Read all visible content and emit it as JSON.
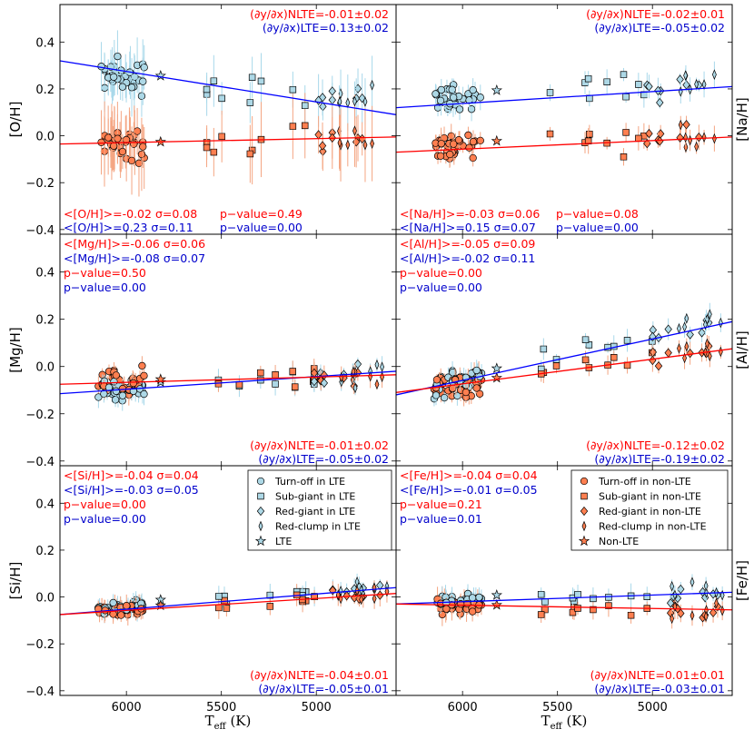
{
  "colors": {
    "lte": "#add8e6",
    "nlte": "#ff7f50",
    "lte_text": "#0000cc",
    "nlte_text": "#ff0000",
    "lte_line": "#0000ff",
    "nlte_line": "#ff0000",
    "lte_err": "#a8d8ea",
    "nlte_err": "#f4a582"
  },
  "figure": {
    "xlabel": "T_eff (K)",
    "xlabel_main": "T",
    "xlabel_sub": "eff",
    "xlabel_unit": " (K)"
  },
  "legend_lte": {
    "entries": [
      {
        "label": "Turn-off in LTE",
        "marker": "circle"
      },
      {
        "label": "Sub-giant in LTE",
        "marker": "square"
      },
      {
        "label": "Red-giant in LTE",
        "marker": "diamond"
      },
      {
        "label": "Red-clump in LTE",
        "marker": "thin_diamond"
      },
      {
        "label": "LTE",
        "marker": "star"
      }
    ]
  },
  "legend_nlte": {
    "entries": [
      {
        "label": "Turn-off in non-LTE",
        "marker": "circle"
      },
      {
        "label": "Sub-giant in non-LTE",
        "marker": "square"
      },
      {
        "label": "Red-giant in non-LTE",
        "marker": "diamond"
      },
      {
        "label": "Red-clump in non-LTE",
        "marker": "thin_diamond"
      },
      {
        "label": "Non-LTE",
        "marker": "star"
      }
    ]
  },
  "chart_data": [
    {
      "type": "scatter",
      "element": "O",
      "ylabel": "[O/H]",
      "ylabel_side": "left",
      "xlim": [
        6350,
        4580
      ],
      "ylim": [
        -0.42,
        0.56
      ],
      "xticks": [
        6000,
        5500,
        5000
      ],
      "xtick_labels": [
        "6000",
        "5500",
        "5000"
      ],
      "show_xticks": false,
      "yticks": [
        -0.4,
        -0.2,
        0.0,
        0.2,
        0.4
      ],
      "ytick_labels": [
        "−0.4",
        "−0.2",
        "0.0",
        "0.2",
        "0.4"
      ],
      "lte_fit": [
        [
          6350,
          0.32
        ],
        [
          4580,
          0.09
        ]
      ],
      "nlte_fit": [
        [
          6350,
          -0.035
        ],
        [
          4580,
          -0.005
        ]
      ],
      "slope_nlte": "(∂y/∂x)NLTE=-0.01±0.02",
      "slope_lte": "(∂y/∂x)LTE=0.13±0.02",
      "slope_pos": "top",
      "mean_nlte": "<[O/H]>=-0.02 σ=0.08",
      "mean_lte": "<[O/H]>=0.23 σ=0.11",
      "pval_nlte": "p−value=0.49",
      "pval_lte": "p−value=0.00",
      "stats_pos": "bottom"
    },
    {
      "type": "scatter",
      "element": "Na",
      "ylabel": "[Na/H]",
      "ylabel_side": "right",
      "xlim": [
        6350,
        4580
      ],
      "ylim": [
        -0.42,
        0.56
      ],
      "xticks": [
        6000,
        5500,
        5000
      ],
      "xtick_labels": [
        "6000",
        "5500",
        "5000"
      ],
      "show_xticks": false,
      "yticks": [],
      "ytick_labels": [],
      "lte_fit": [
        [
          6350,
          0.12
        ],
        [
          4580,
          0.21
        ]
      ],
      "nlte_fit": [
        [
          6350,
          -0.07
        ],
        [
          4580,
          -0.005
        ]
      ],
      "slope_nlte": "(∂y/∂x)NLTE=-0.02±0.01",
      "slope_lte": "(∂y/∂x)LTE=-0.05±0.02",
      "slope_pos": "top",
      "mean_nlte": "<[Na/H]>=-0.03 σ=0.06",
      "mean_lte": "<[Na/H]>=0.15 σ=0.07",
      "pval_nlte": "p−value=0.08",
      "pval_lte": "p−value=0.00",
      "stats_pos": "bottom"
    },
    {
      "type": "scatter",
      "element": "Mg",
      "ylabel": "[Mg/H]",
      "ylabel_side": "left",
      "xlim": [
        6350,
        4580
      ],
      "ylim": [
        -0.42,
        0.56
      ],
      "xticks": [
        6000,
        5500,
        5000
      ],
      "xtick_labels": [
        "6000",
        "5500",
        "5000"
      ],
      "show_xticks": false,
      "yticks": [
        -0.4,
        -0.2,
        0.0,
        0.2,
        0.4
      ],
      "ytick_labels": [
        "−0.4",
        "−0.2",
        "0.0",
        "0.2",
        "0.4"
      ],
      "lte_fit": [
        [
          6350,
          -0.115
        ],
        [
          4580,
          -0.02
        ]
      ],
      "nlte_fit": [
        [
          6350,
          -0.075
        ],
        [
          4580,
          -0.035
        ]
      ],
      "slope_nlte": "(∂y/∂x)NLTE=-0.01±0.02",
      "slope_lte": "(∂y/∂x)LTE=-0.05±0.02",
      "slope_pos": "bottom",
      "mean_nlte": "<[Mg/H]>=-0.06 σ=0.06",
      "mean_lte": "<[Mg/H]>=-0.08 σ=0.07",
      "pval_nlte": "p−value=0.50",
      "pval_lte": "p−value=0.00",
      "stats_pos": "top"
    },
    {
      "type": "scatter",
      "element": "Al",
      "ylabel": "[Al/H]",
      "ylabel_side": "right",
      "xlim": [
        6350,
        4580
      ],
      "ylim": [
        -0.42,
        0.56
      ],
      "xticks": [
        6000,
        5500,
        5000
      ],
      "xtick_labels": [
        "6000",
        "5500",
        "5000"
      ],
      "show_xticks": false,
      "yticks": [],
      "ytick_labels": [],
      "lte_fit": [
        [
          6350,
          -0.12
        ],
        [
          4580,
          0.19
        ]
      ],
      "nlte_fit": [
        [
          6350,
          -0.11
        ],
        [
          4580,
          0.075
        ]
      ],
      "slope_nlte": "(∂y/∂x)NLTE=-0.12±0.02",
      "slope_lte": "(∂y/∂x)LTE=-0.19±0.02",
      "slope_pos": "bottom",
      "mean_nlte": "<[Al/H]>=-0.05 σ=0.09",
      "mean_lte": "<[Al/H]>=-0.02 σ=0.11",
      "pval_nlte": "p−value=0.00",
      "pval_lte": "p−value=0.00",
      "stats_pos": "top"
    },
    {
      "type": "scatter",
      "element": "Si",
      "ylabel": "[Si/H]",
      "ylabel_side": "left",
      "xlim": [
        6350,
        4580
      ],
      "ylim": [
        -0.42,
        0.56
      ],
      "xticks": [
        6000,
        5500,
        5000
      ],
      "xtick_labels": [
        "6000",
        "5500",
        "5000"
      ],
      "show_xticks": true,
      "yticks": [
        -0.4,
        -0.2,
        0.0,
        0.2,
        0.4
      ],
      "ytick_labels": [
        "−0.4",
        "−0.2",
        "0.0",
        "0.2",
        "0.4"
      ],
      "lte_fit": [
        [
          6350,
          -0.075
        ],
        [
          4580,
          0.04
        ]
      ],
      "nlte_fit": [
        [
          6350,
          -0.075
        ],
        [
          4580,
          0.015
        ]
      ],
      "slope_nlte": "(∂y/∂x)NLTE=-0.04±0.01",
      "slope_lte": "(∂y/∂x)LTE=-0.05±0.01",
      "slope_pos": "bottom",
      "mean_nlte": "<[Si/H]>=-0.04 σ=0.04",
      "mean_lte": "<[Si/H]>=-0.03 σ=0.05",
      "pval_nlte": "p−value=0.00",
      "pval_lte": "p−value=0.00",
      "stats_pos": "top",
      "legend": "lte"
    },
    {
      "type": "scatter",
      "element": "Fe",
      "ylabel": "[Fe/H]",
      "ylabel_side": "right",
      "xlim": [
        6350,
        4580
      ],
      "ylim": [
        -0.42,
        0.56
      ],
      "xticks": [
        6000,
        5500,
        5000
      ],
      "xtick_labels": [
        "6000",
        "5500",
        "5000"
      ],
      "show_xticks": true,
      "yticks": [],
      "ytick_labels": [],
      "lte_fit": [
        [
          6350,
          -0.03
        ],
        [
          4580,
          0.02
        ]
      ],
      "nlte_fit": [
        [
          6350,
          -0.03
        ],
        [
          4580,
          -0.055
        ]
      ],
      "slope_nlte": "(∂y/∂x)NLTE=0.01±0.01",
      "slope_lte": "(∂y/∂x)LTE=-0.03±0.01",
      "slope_pos": "bottom",
      "mean_nlte": "<[Fe/H]>=-0.04 σ=0.04",
      "mean_lte": "<[Fe/H]>=-0.01 σ=0.05",
      "pval_nlte": "p−value=0.21",
      "pval_lte": "p−value=0.01",
      "stats_pos": "top",
      "legend": "nlte"
    }
  ]
}
